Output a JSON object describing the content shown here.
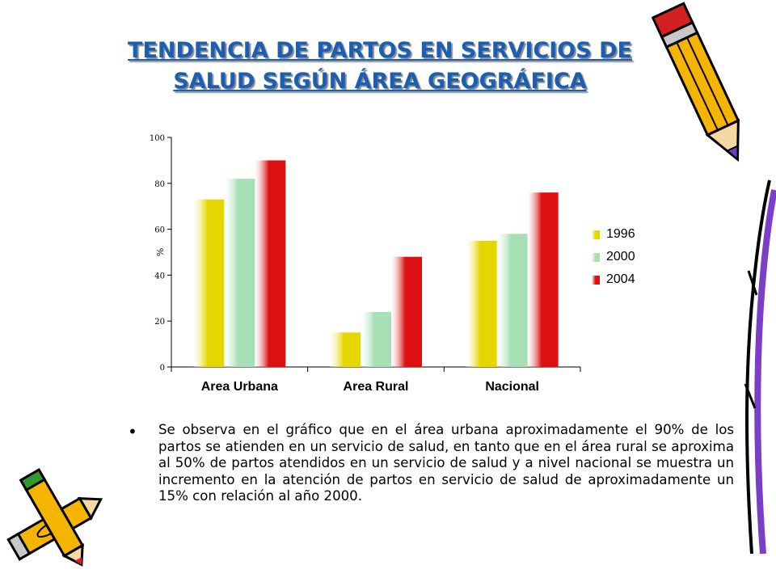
{
  "title": {
    "line1": "TENDENCIA DE PARTOS EN SERVICIOS DE",
    "line2": "SALUD SEGÚN ÁREA GEOGRÁFICA"
  },
  "chart_data": {
    "type": "bar",
    "categories": [
      "Area Urbana",
      "Area Rural",
      "Nacional"
    ],
    "series": [
      {
        "name": "1996",
        "values": [
          73,
          15,
          55
        ],
        "color": "#e6d600"
      },
      {
        "name": "2000",
        "values": [
          82,
          24,
          58
        ],
        "color": "#a6e0b4"
      },
      {
        "name": "2004",
        "values": [
          90,
          48,
          76
        ],
        "color": "#dd1111"
      }
    ],
    "ylabel": "%",
    "ylim": [
      0,
      100
    ],
    "yticks": [
      0,
      20,
      40,
      60,
      80,
      100
    ],
    "grid": false,
    "legend": "right"
  },
  "body": {
    "bullet": "•",
    "text": "Se observa en el gráfico que en el área urbana aproximadamente el 90% de los partos se atienden en un servicio de salud, en tanto que en el área rural se aproxima al 50% de partos atendidos en un servicio de salud y a nivel nacional se muestra un incremento en la atención de partos en servicio de salud de aproximadamente un 15% con relación al año 2000."
  },
  "decorations": {
    "top_right": "pencil-icon",
    "bottom_left": "pencils-icon",
    "right_edge": "pencil-icon"
  }
}
